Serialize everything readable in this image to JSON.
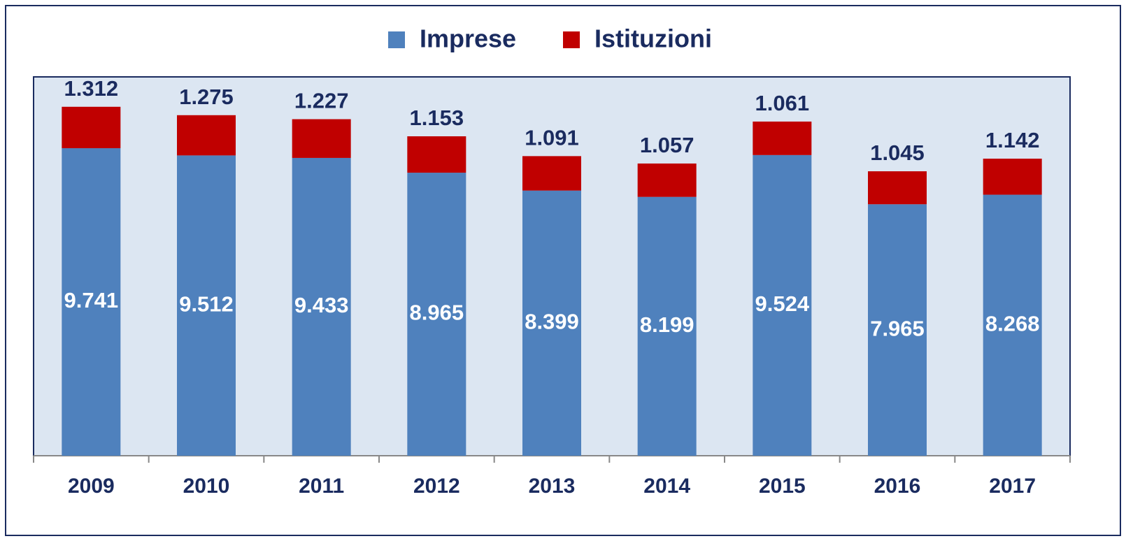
{
  "chart_data": {
    "type": "stacked_bar",
    "categories": [
      "2009",
      "2010",
      "2011",
      "2012",
      "2013",
      "2014",
      "2015",
      "2016",
      "2017"
    ],
    "series": [
      {
        "name": "Imprese",
        "color": "#4f81bd",
        "values": [
          9741,
          9512,
          9433,
          8965,
          8399,
          8199,
          9524,
          7965,
          8268
        ],
        "value_labels": [
          "9.741",
          "9.512",
          "9.433",
          "8.965",
          "8.399",
          "8.199",
          "9.524",
          "7.965",
          "8.268"
        ]
      },
      {
        "name": "Istituzioni",
        "color": "#c00000",
        "values": [
          1312,
          1275,
          1227,
          1153,
          1091,
          1057,
          1061,
          1045,
          1142
        ],
        "value_labels": [
          "1.312",
          "1.275",
          "1.227",
          "1.153",
          "1.091",
          "1.057",
          "1.061",
          "1.045",
          "1.142"
        ]
      }
    ],
    "ylim": [
      0,
      12000
    ],
    "legend": "top"
  }
}
